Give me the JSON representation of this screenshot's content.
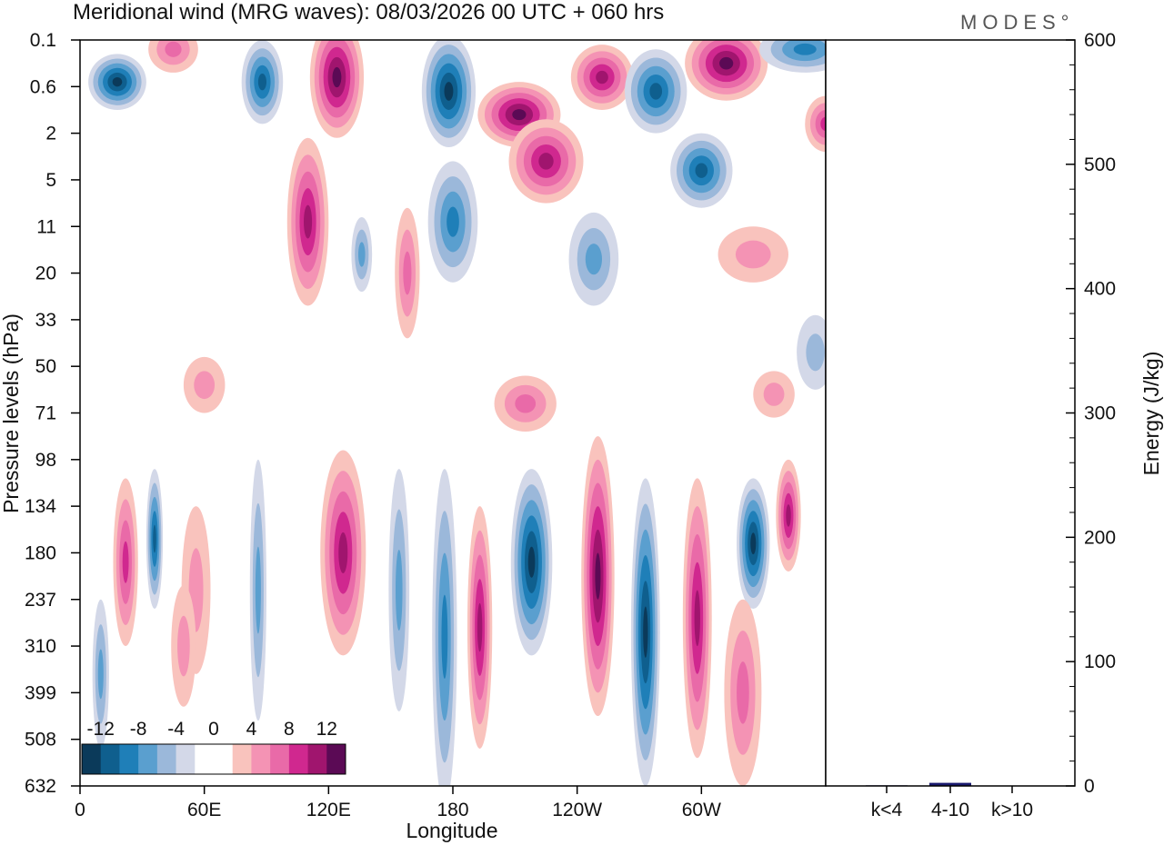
{
  "chart_data": [
    {
      "type": "heatmap",
      "title": "Meridional wind (MRG waves):  08/03/2026  00 UTC  + 060 hrs",
      "xlabel": "Longitude",
      "ylabel": "Pressure levels (hPa)",
      "x_ticks": [
        "0",
        "60E",
        "120E",
        "180",
        "120W",
        "60W"
      ],
      "x_tick_values": [
        0,
        60,
        120,
        180,
        240,
        300
      ],
      "xlim": [
        0,
        360
      ],
      "y_ticks": [
        "0.1",
        "0.6",
        "2",
        "5",
        "11",
        "20",
        "33",
        "50",
        "71",
        "98",
        "134",
        "180",
        "237",
        "310",
        "399",
        "508",
        "632"
      ],
      "colorbar": {
        "labels": [
          "-12",
          "-8",
          "-4",
          "0",
          "4",
          "8",
          "12"
        ],
        "colors": [
          "#0b3a5a",
          "#0f5f8e",
          "#1f7fb8",
          "#5a9fcf",
          "#9bb8da",
          "#d3d8e8",
          "#ffffff",
          "#ffffff",
          "#f9c3bd",
          "#f493b4",
          "#e96aa8",
          "#d0288f",
          "#a0156e",
          "#5b0a55"
        ]
      },
      "blobs": [
        {
          "lon": 18,
          "lev": 0.9,
          "w": 14,
          "h": 0.6,
          "v": -10
        },
        {
          "lon": 45,
          "lev": 0.2,
          "w": 12,
          "h": 0.5,
          "v": 4
        },
        {
          "lon": 88,
          "lev": 0.9,
          "w": 10,
          "h": 0.9,
          "v": -9
        },
        {
          "lon": 124,
          "lev": 0.8,
          "w": 13,
          "h": 1.3,
          "v": 13
        },
        {
          "lon": 178,
          "lev": 1.1,
          "w": 13,
          "h": 1.2,
          "v": -12
        },
        {
          "lon": 212,
          "lev": 1.6,
          "w": 20,
          "h": 0.7,
          "v": 13
        },
        {
          "lon": 252,
          "lev": 0.8,
          "w": 15,
          "h": 0.7,
          "v": 8
        },
        {
          "lon": 278,
          "lev": 1.1,
          "w": 15,
          "h": 0.9,
          "v": -9
        },
        {
          "lon": 312,
          "lev": 0.5,
          "w": 20,
          "h": 0.8,
          "v": 10
        },
        {
          "lon": 350,
          "lev": 0.2,
          "w": 22,
          "h": 0.5,
          "v": -7
        },
        {
          "lon": 225,
          "lev": 2.6,
          "w": 18,
          "h": 0.9,
          "v": 8
        },
        {
          "lon": 300,
          "lev": 2.8,
          "w": 15,
          "h": 0.8,
          "v": -8
        },
        {
          "lon": 360,
          "lev": 1.8,
          "w": 10,
          "h": 0.6,
          "v": 6
        },
        {
          "lon": 110,
          "lev": 3.9,
          "w": 10,
          "h": 1.8,
          "v": 8
        },
        {
          "lon": 180,
          "lev": 3.9,
          "w": 12,
          "h": 1.3,
          "v": -6
        },
        {
          "lon": 158,
          "lev": 5.0,
          "w": 6,
          "h": 1.4,
          "v": 5
        },
        {
          "lon": 136,
          "lev": 4.6,
          "w": 5,
          "h": 0.8,
          "v": -4
        },
        {
          "lon": 325,
          "lev": 4.6,
          "w": 17,
          "h": 0.6,
          "v": 3
        },
        {
          "lon": 248,
          "lev": 4.7,
          "w": 12,
          "h": 1.0,
          "v": -4
        },
        {
          "lon": 22,
          "lev": 11.2,
          "w": 6,
          "h": 1.8,
          "v": 7
        },
        {
          "lon": 36,
          "lev": 10.7,
          "w": 4,
          "h": 1.5,
          "v": -8
        },
        {
          "lon": 56,
          "lev": 11.8,
          "w": 7,
          "h": 1.8,
          "v": 3
        },
        {
          "lon": 86,
          "lev": 11.8,
          "w": 4,
          "h": 2.8,
          "v": -5
        },
        {
          "lon": 127,
          "lev": 11.0,
          "w": 11,
          "h": 2.2,
          "v": 9
        },
        {
          "lon": 154,
          "lev": 11.8,
          "w": 5,
          "h": 2.6,
          "v": -4
        },
        {
          "lon": 176,
          "lev": 12.8,
          "w": 6,
          "h": 3.6,
          "v": -6
        },
        {
          "lon": 193,
          "lev": 12.6,
          "w": 6,
          "h": 2.6,
          "v": 8
        },
        {
          "lon": 218,
          "lev": 11.2,
          "w": 10,
          "h": 2.0,
          "v": -11
        },
        {
          "lon": 250,
          "lev": 11.5,
          "w": 8,
          "h": 3.0,
          "v": 13
        },
        {
          "lon": 273,
          "lev": 12.7,
          "w": 7,
          "h": 3.3,
          "v": -13
        },
        {
          "lon": 298,
          "lev": 12.4,
          "w": 7,
          "h": 3.0,
          "v": 9
        },
        {
          "lon": 325,
          "lev": 10.8,
          "w": 8,
          "h": 1.4,
          "v": -10
        },
        {
          "lon": 342,
          "lev": 10.2,
          "w": 6,
          "h": 1.2,
          "v": 8
        },
        {
          "lon": 320,
          "lev": 14.0,
          "w": 9,
          "h": 2.0,
          "v": 4
        },
        {
          "lon": 215,
          "lev": 7.8,
          "w": 15,
          "h": 0.6,
          "v": 4
        },
        {
          "lon": 60,
          "lev": 7.4,
          "w": 10,
          "h": 0.6,
          "v": 3
        },
        {
          "lon": 335,
          "lev": 7.6,
          "w": 10,
          "h": 0.5,
          "v": 3
        },
        {
          "lon": 355,
          "lev": 6.7,
          "w": 9,
          "h": 0.8,
          "v": -3
        },
        {
          "lon": 50,
          "lev": 13.0,
          "w": 6,
          "h": 1.3,
          "v": 3
        },
        {
          "lon": 10,
          "lev": 13.6,
          "w": 4,
          "h": 1.6,
          "v": -4
        }
      ]
    },
    {
      "type": "bar",
      "categories": [
        "k<4",
        "4-10",
        "k>10"
      ],
      "values": [
        0.5,
        2.5,
        0.3
      ],
      "ylabel": "Energy (J/kg)",
      "ylim": [
        0,
        600
      ],
      "y_ticks": [
        "0",
        "100",
        "200",
        "300",
        "400",
        "500",
        "600"
      ],
      "y_tick_values": [
        0,
        100,
        200,
        300,
        400,
        500,
        600
      ],
      "bar_color": "#1a1a6e"
    }
  ],
  "logo": "MODES°"
}
